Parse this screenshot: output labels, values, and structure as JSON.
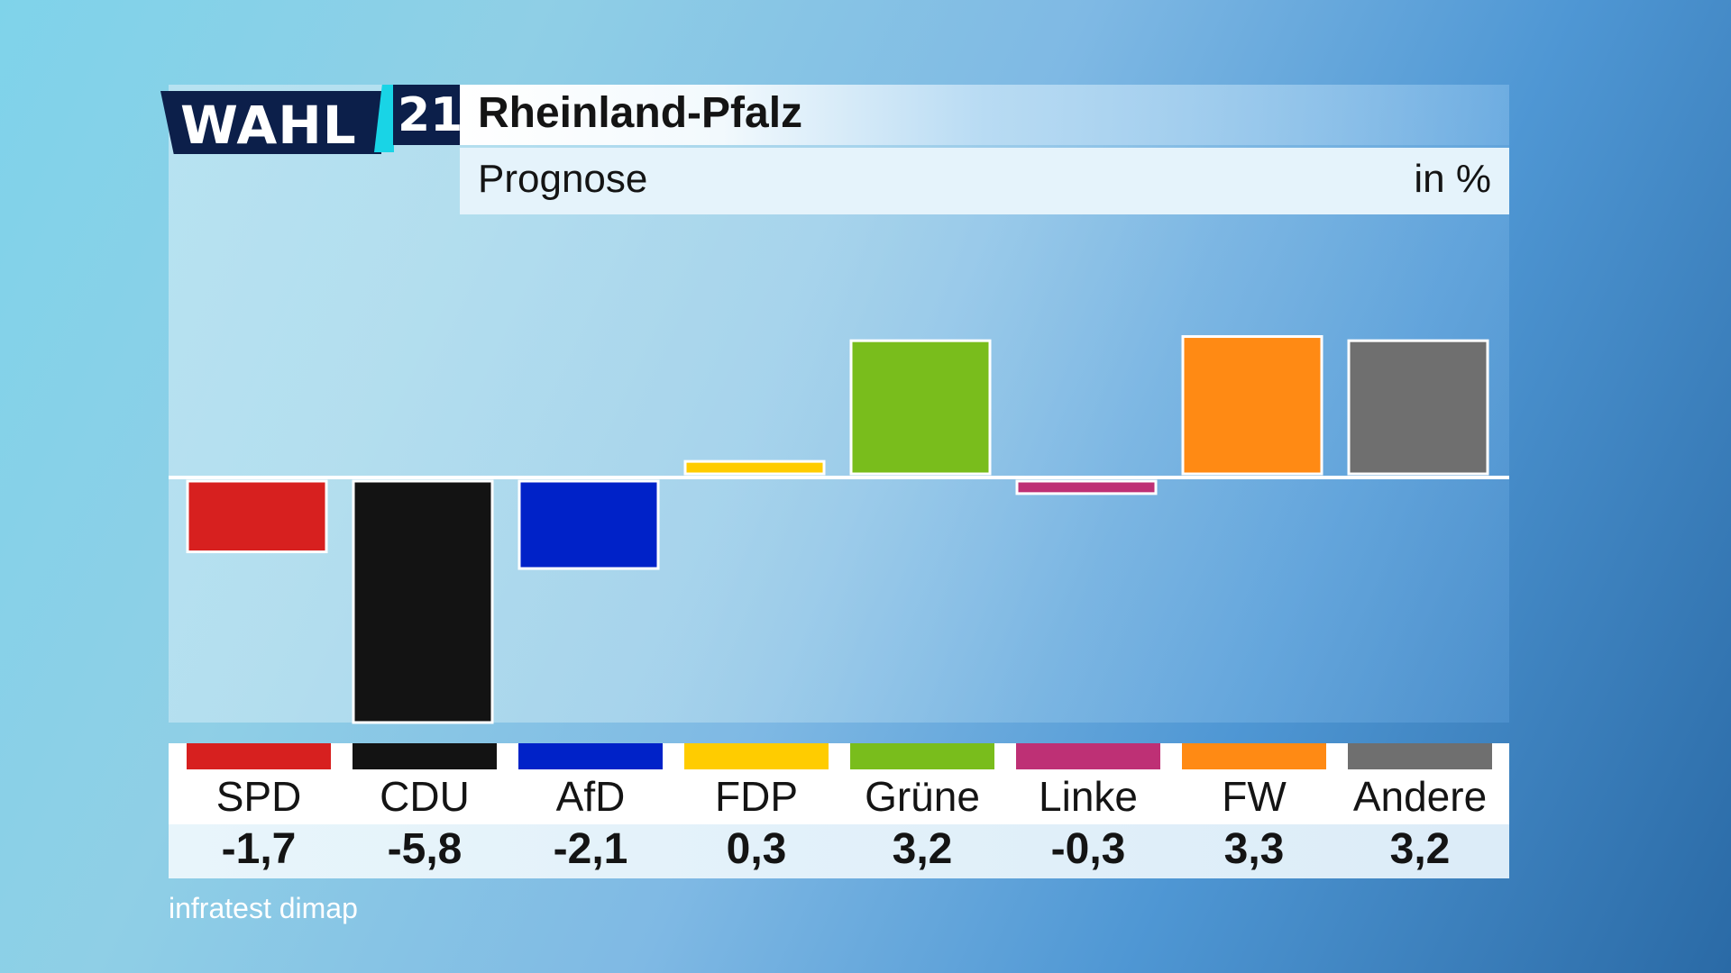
{
  "logo": {
    "word": "WAHL",
    "number": "21"
  },
  "header": {
    "title": "Rheinland-Pfalz",
    "subtitle": "Prognose",
    "unit": "in %"
  },
  "source": "infratest dimap",
  "chart_data": {
    "type": "bar",
    "title": "Rheinland-Pfalz",
    "subtitle": "Prognose",
    "unit": "in %",
    "categories": [
      "SPD",
      "CDU",
      "AfD",
      "FDP",
      "Grüne",
      "Linke",
      "FW",
      "Andere"
    ],
    "values": [
      -1.7,
      -5.8,
      -2.1,
      0.3,
      3.2,
      -0.3,
      3.3,
      3.2
    ],
    "value_labels": [
      "-1,7",
      "-5,8",
      "-2,1",
      "0,3",
      "3,2",
      "-0,3",
      "3,3",
      "3,2"
    ],
    "colors": [
      "#d7201f",
      "#131313",
      "#0022c8",
      "#ffcc00",
      "#79bd1c",
      "#be3075",
      "#ff8a14",
      "#6f6f6f"
    ],
    "ylim": [
      -5.8,
      3.3
    ],
    "grid": false,
    "legend": "bottom"
  }
}
